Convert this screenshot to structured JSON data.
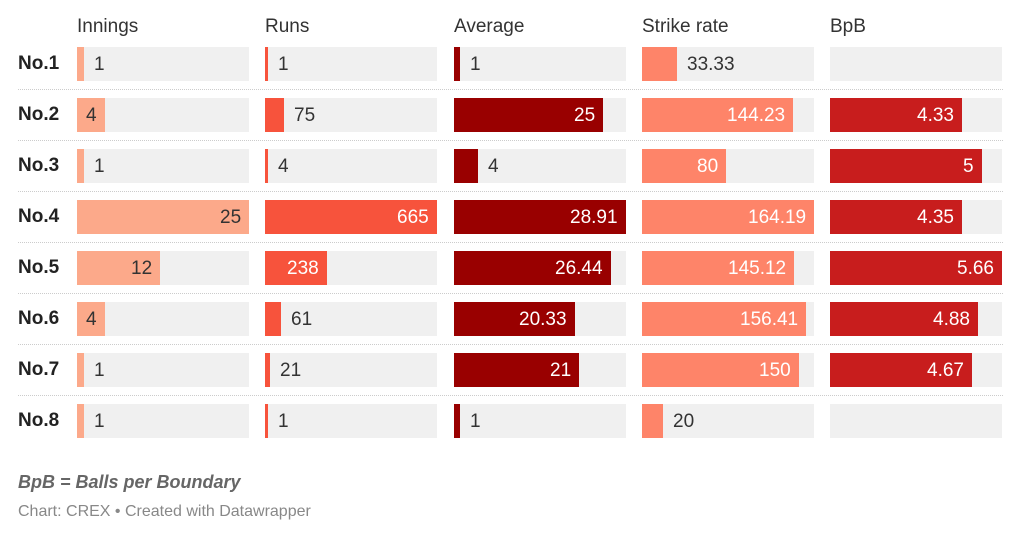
{
  "chart_data": {
    "type": "table",
    "title": "",
    "columns": [
      {
        "name": "Innings",
        "color": "#fca98a"
      },
      {
        "name": "Runs",
        "color": "#f7533c"
      },
      {
        "name": "Average",
        "color": "#990000"
      },
      {
        "name": "Strike rate",
        "color": "#fe8469"
      },
      {
        "name": "BpB",
        "color": "#c81d1d"
      }
    ],
    "rows": [
      {
        "label": "No.1",
        "values": [
          1,
          1,
          1,
          33.33,
          null
        ]
      },
      {
        "label": "No.2",
        "values": [
          4,
          75,
          25,
          144.23,
          4.33
        ]
      },
      {
        "label": "No.3",
        "values": [
          1,
          4,
          4,
          80,
          5
        ]
      },
      {
        "label": "No.4",
        "values": [
          25,
          665,
          28.91,
          164.19,
          4.35
        ]
      },
      {
        "label": "No.5",
        "values": [
          12,
          238,
          26.44,
          145.12,
          5.66
        ]
      },
      {
        "label": "No.6",
        "values": [
          4,
          61,
          20.33,
          156.41,
          4.88
        ]
      },
      {
        "label": "No.7",
        "values": [
          1,
          21,
          21,
          150,
          4.67
        ]
      },
      {
        "label": "No.8",
        "values": [
          1,
          1,
          1,
          20,
          null
        ]
      }
    ],
    "value_labels": [
      [
        "1",
        "1",
        "1",
        "33.33",
        ""
      ],
      [
        "4",
        "75",
        "25",
        "144.23",
        "4.33"
      ],
      [
        "1",
        "4",
        "4",
        "80",
        "5"
      ],
      [
        "25",
        "665",
        "28.91",
        "164.19",
        "4.35"
      ],
      [
        "12",
        "238",
        "26.44",
        "145.12",
        "5.66"
      ],
      [
        "4",
        "61",
        "20.33",
        "156.41",
        "4.88"
      ],
      [
        "1",
        "21",
        "21",
        "150",
        "4.67"
      ],
      [
        "1",
        "1",
        "1",
        "20",
        ""
      ]
    ],
    "column_max": [
      25,
      665,
      28.91,
      164.19,
      5.66
    ]
  },
  "note": "BpB = Balls per Boundary",
  "source": "Chart: CREX • Created with Datawrapper"
}
